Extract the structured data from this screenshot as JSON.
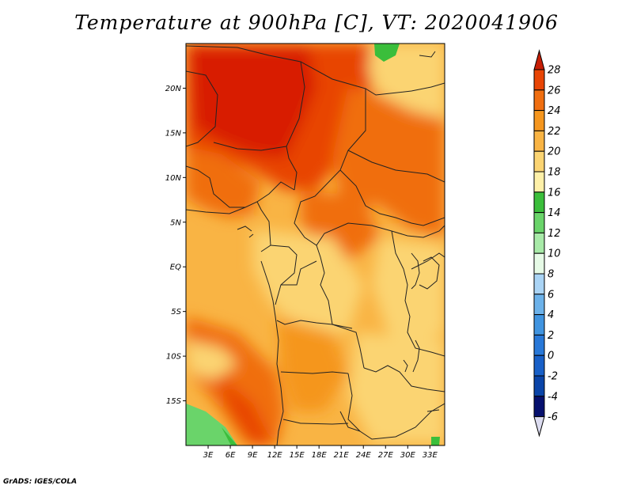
{
  "title": "Temperature at 900hPa [C], VT: 2020041906",
  "credit": "GrADS: IGES/COLA",
  "map": {
    "lon_range": [
      0,
      35
    ],
    "lat_range": [
      -20,
      25
    ],
    "lat_ticks": [
      {
        "value": 20,
        "label": "20N"
      },
      {
        "value": 15,
        "label": "15N"
      },
      {
        "value": 10,
        "label": "10N"
      },
      {
        "value": 5,
        "label": "5N"
      },
      {
        "value": 0,
        "label": "EQ"
      },
      {
        "value": -5,
        "label": "5S"
      },
      {
        "value": -10,
        "label": "10S"
      },
      {
        "value": -15,
        "label": "15S"
      }
    ],
    "lon_ticks": [
      {
        "value": 3,
        "label": "3E"
      },
      {
        "value": 6,
        "label": "6E"
      },
      {
        "value": 9,
        "label": "9E"
      },
      {
        "value": 12,
        "label": "12E"
      },
      {
        "value": 15,
        "label": "15E"
      },
      {
        "value": 18,
        "label": "18E"
      },
      {
        "value": 21,
        "label": "21E"
      },
      {
        "value": 24,
        "label": "24E"
      },
      {
        "value": 27,
        "label": "27E"
      },
      {
        "value": 30,
        "label": "30E"
      },
      {
        "value": 33,
        "label": "33E"
      }
    ]
  },
  "colorbar": {
    "levels": [
      "28",
      "26",
      "24",
      "22",
      "20",
      "18",
      "16",
      "14",
      "12",
      "10",
      "8",
      "6",
      "4",
      "2",
      "0",
      "-2",
      "-4",
      "-6"
    ],
    "colors": [
      "#d81e05",
      "#e84505",
      "#f06e10",
      "#f5961e",
      "#f9b444",
      "#fbd472",
      "#fef0a8",
      "#3bbe3b",
      "#6ad46a",
      "#a8eaa8",
      "#e6fae6",
      "#aad4f5",
      "#6cb2ea",
      "#4094e0",
      "#2878d8",
      "#1860c8",
      "#0a44a8",
      "#06106e"
    ],
    "top_triangle_color": "#c71e05",
    "bottom_triangle_color": "#dcdcf0"
  }
}
